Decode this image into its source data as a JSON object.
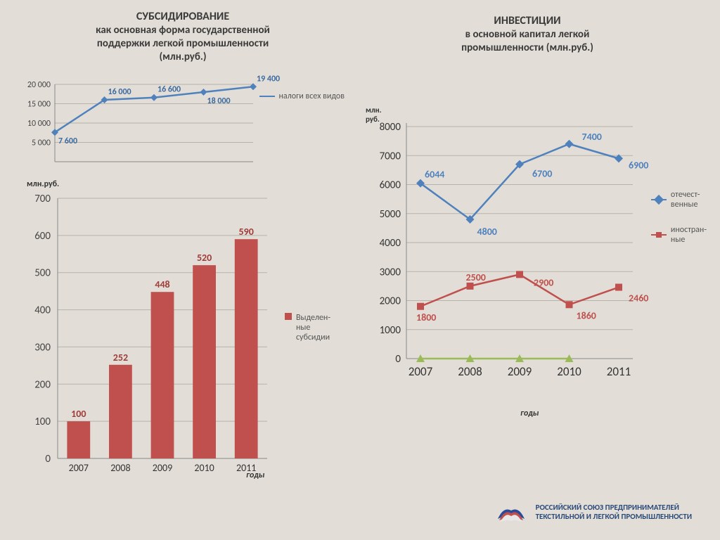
{
  "left_title": {
    "line1": "СУБСИДИРОВАНИЕ",
    "line2": "как основная форма государственной",
    "line3": "поддержки легкой промышленности",
    "line4": "(млн.руб.)",
    "fontsize_main": 16,
    "fontsize_sub": 14
  },
  "right_title": {
    "line1": "ИНВЕСТИЦИИ",
    "line2": "в основной капитал легкой",
    "line3": "промышленности (млн.руб.)",
    "fontsize_main": 16,
    "fontsize_sub": 14
  },
  "line_chart_top": {
    "type": "line",
    "categories": [
      "2007",
      "2008",
      "2009",
      "2010",
      "2011"
    ],
    "values": [
      7600,
      16000,
      16600,
      18000,
      19400
    ],
    "data_labels": [
      "7 600",
      "16 000",
      "16 600",
      "18 000",
      "19 400"
    ],
    "line_color": "#4f81bd",
    "marker_shape": "diamond",
    "marker_color": "#4f81bd",
    "label_color": "#3b6aa0",
    "ylim": [
      0,
      20000
    ],
    "yticks": [
      5000,
      10000,
      15000,
      20000
    ],
    "ytick_labels": [
      "5 000",
      "10 000",
      "15 000",
      "20 000"
    ],
    "grid_color": "#b7b3aa",
    "legend_label": "налоги всех видов"
  },
  "bar_chart_left": {
    "type": "bar",
    "categories": [
      "2007",
      "2008",
      "2009",
      "2010",
      "2011"
    ],
    "values": [
      100,
      252,
      448,
      520,
      590
    ],
    "bar_color": "#c0504d",
    "label_color": "#a03b38",
    "ylim": [
      0,
      700
    ],
    "yticks": [
      0,
      100,
      200,
      300,
      400,
      500,
      600,
      700
    ],
    "grid_color": "#b7b3aa",
    "y_axis_title": "млн.руб.",
    "x_axis_title": "годы",
    "legend_label_line1": "Выделен-",
    "legend_label_line2": "ные",
    "legend_label_line3": "субсидии",
    "bar_width": 0.55
  },
  "line_chart_right": {
    "type": "line",
    "categories": [
      "2007",
      "2008",
      "2009",
      "2010",
      "2011"
    ],
    "y_axis_title": "млн.\nруб.",
    "x_axis_title": "годы",
    "ylim": [
      0,
      8000
    ],
    "yticks": [
      0,
      1000,
      2000,
      3000,
      4000,
      5000,
      6000,
      7000,
      8000
    ],
    "grid_color": "#b7b3aa",
    "series": [
      {
        "name_line1": "отечест-",
        "name_line2": "венные",
        "color": "#4f81bd",
        "marker": "diamond",
        "values": [
          6044,
          4800,
          6700,
          7400,
          6900
        ],
        "labels": [
          "6044",
          "4800",
          "6700",
          "7400",
          "6900"
        ]
      },
      {
        "name_line1": "иностран-",
        "name_line2": "ные",
        "color": "#c0504d",
        "marker": "square",
        "values": [
          1800,
          2500,
          2900,
          1860,
          2460
        ],
        "labels": [
          "1800",
          "2500",
          "2900",
          "1860",
          "2460"
        ]
      },
      {
        "name_line1": "",
        "name_line2": "",
        "color": "#9bbb59",
        "marker": "triangle",
        "values": [
          0,
          0,
          0,
          0,
          null
        ],
        "labels": [
          "",
          "",
          "",
          "",
          ""
        ],
        "legend_hidden": true
      }
    ]
  },
  "footer": {
    "line1": "РОССИЙСКИЙ СОЮЗ ПРЕДПРИНИМАТЕЛЕЙ",
    "line2": "ТЕКСТИЛЬНОЙ И ЛЕГКОЙ ПРОМЫШЛЕННОСТИ"
  },
  "background_color": "#e2ded7"
}
